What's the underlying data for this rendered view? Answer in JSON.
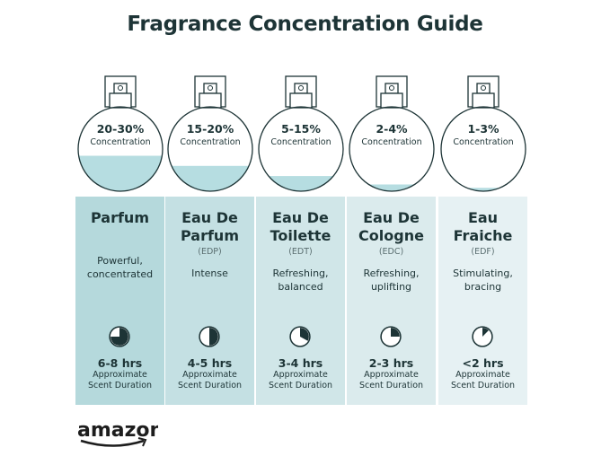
{
  "title": "Fragrance Concentration Guide",
  "colors": {
    "text": "#1d3436",
    "liquid": "#b6dde1",
    "panel_dark": "#b5d9dc",
    "panel_light": "#e6f1f3"
  },
  "concentration_label": "Concentration",
  "duration_label": [
    "Approximate",
    "Scent Duration"
  ],
  "types": [
    {
      "percent": "20-30%",
      "fill": 0.42,
      "name": [
        "Parfum",
        ""
      ],
      "abbr": "",
      "desc": [
        "Powerful,",
        "concentrated"
      ],
      "hours": "6-8 hrs",
      "clock_fill": 0.75,
      "bg": "#b5d9dc"
    },
    {
      "percent": "15-20%",
      "fill": 0.3,
      "name": [
        "Eau De",
        "Parfum"
      ],
      "abbr": "(EDP)",
      "desc": [
        "Intense",
        ""
      ],
      "hours": "4-5 hrs",
      "clock_fill": 0.5,
      "bg": "#c4e0e3"
    },
    {
      "percent": "5-15%",
      "fill": 0.18,
      "name": [
        "Eau De",
        "Toilette"
      ],
      "abbr": "(EDT)",
      "desc": [
        "Refreshing,",
        "balanced"
      ],
      "hours": "3-4 hrs",
      "clock_fill": 0.33,
      "bg": "#d0e6e8"
    },
    {
      "percent": "2-4%",
      "fill": 0.08,
      "name": [
        "Eau De",
        "Cologne"
      ],
      "abbr": "(EDC)",
      "desc": [
        "Refreshing,",
        "uplifting"
      ],
      "hours": "2-3 hrs",
      "clock_fill": 0.25,
      "bg": "#dbebed"
    },
    {
      "percent": "1-3%",
      "fill": 0.04,
      "name": [
        "Eau",
        "Fraiche"
      ],
      "abbr": "(EDF)",
      "desc": [
        "Stimulating,",
        "bracing"
      ],
      "hours": "<2 hrs",
      "clock_fill": 0.125,
      "bg": "#e6f1f3"
    }
  ],
  "logo": "amazon"
}
